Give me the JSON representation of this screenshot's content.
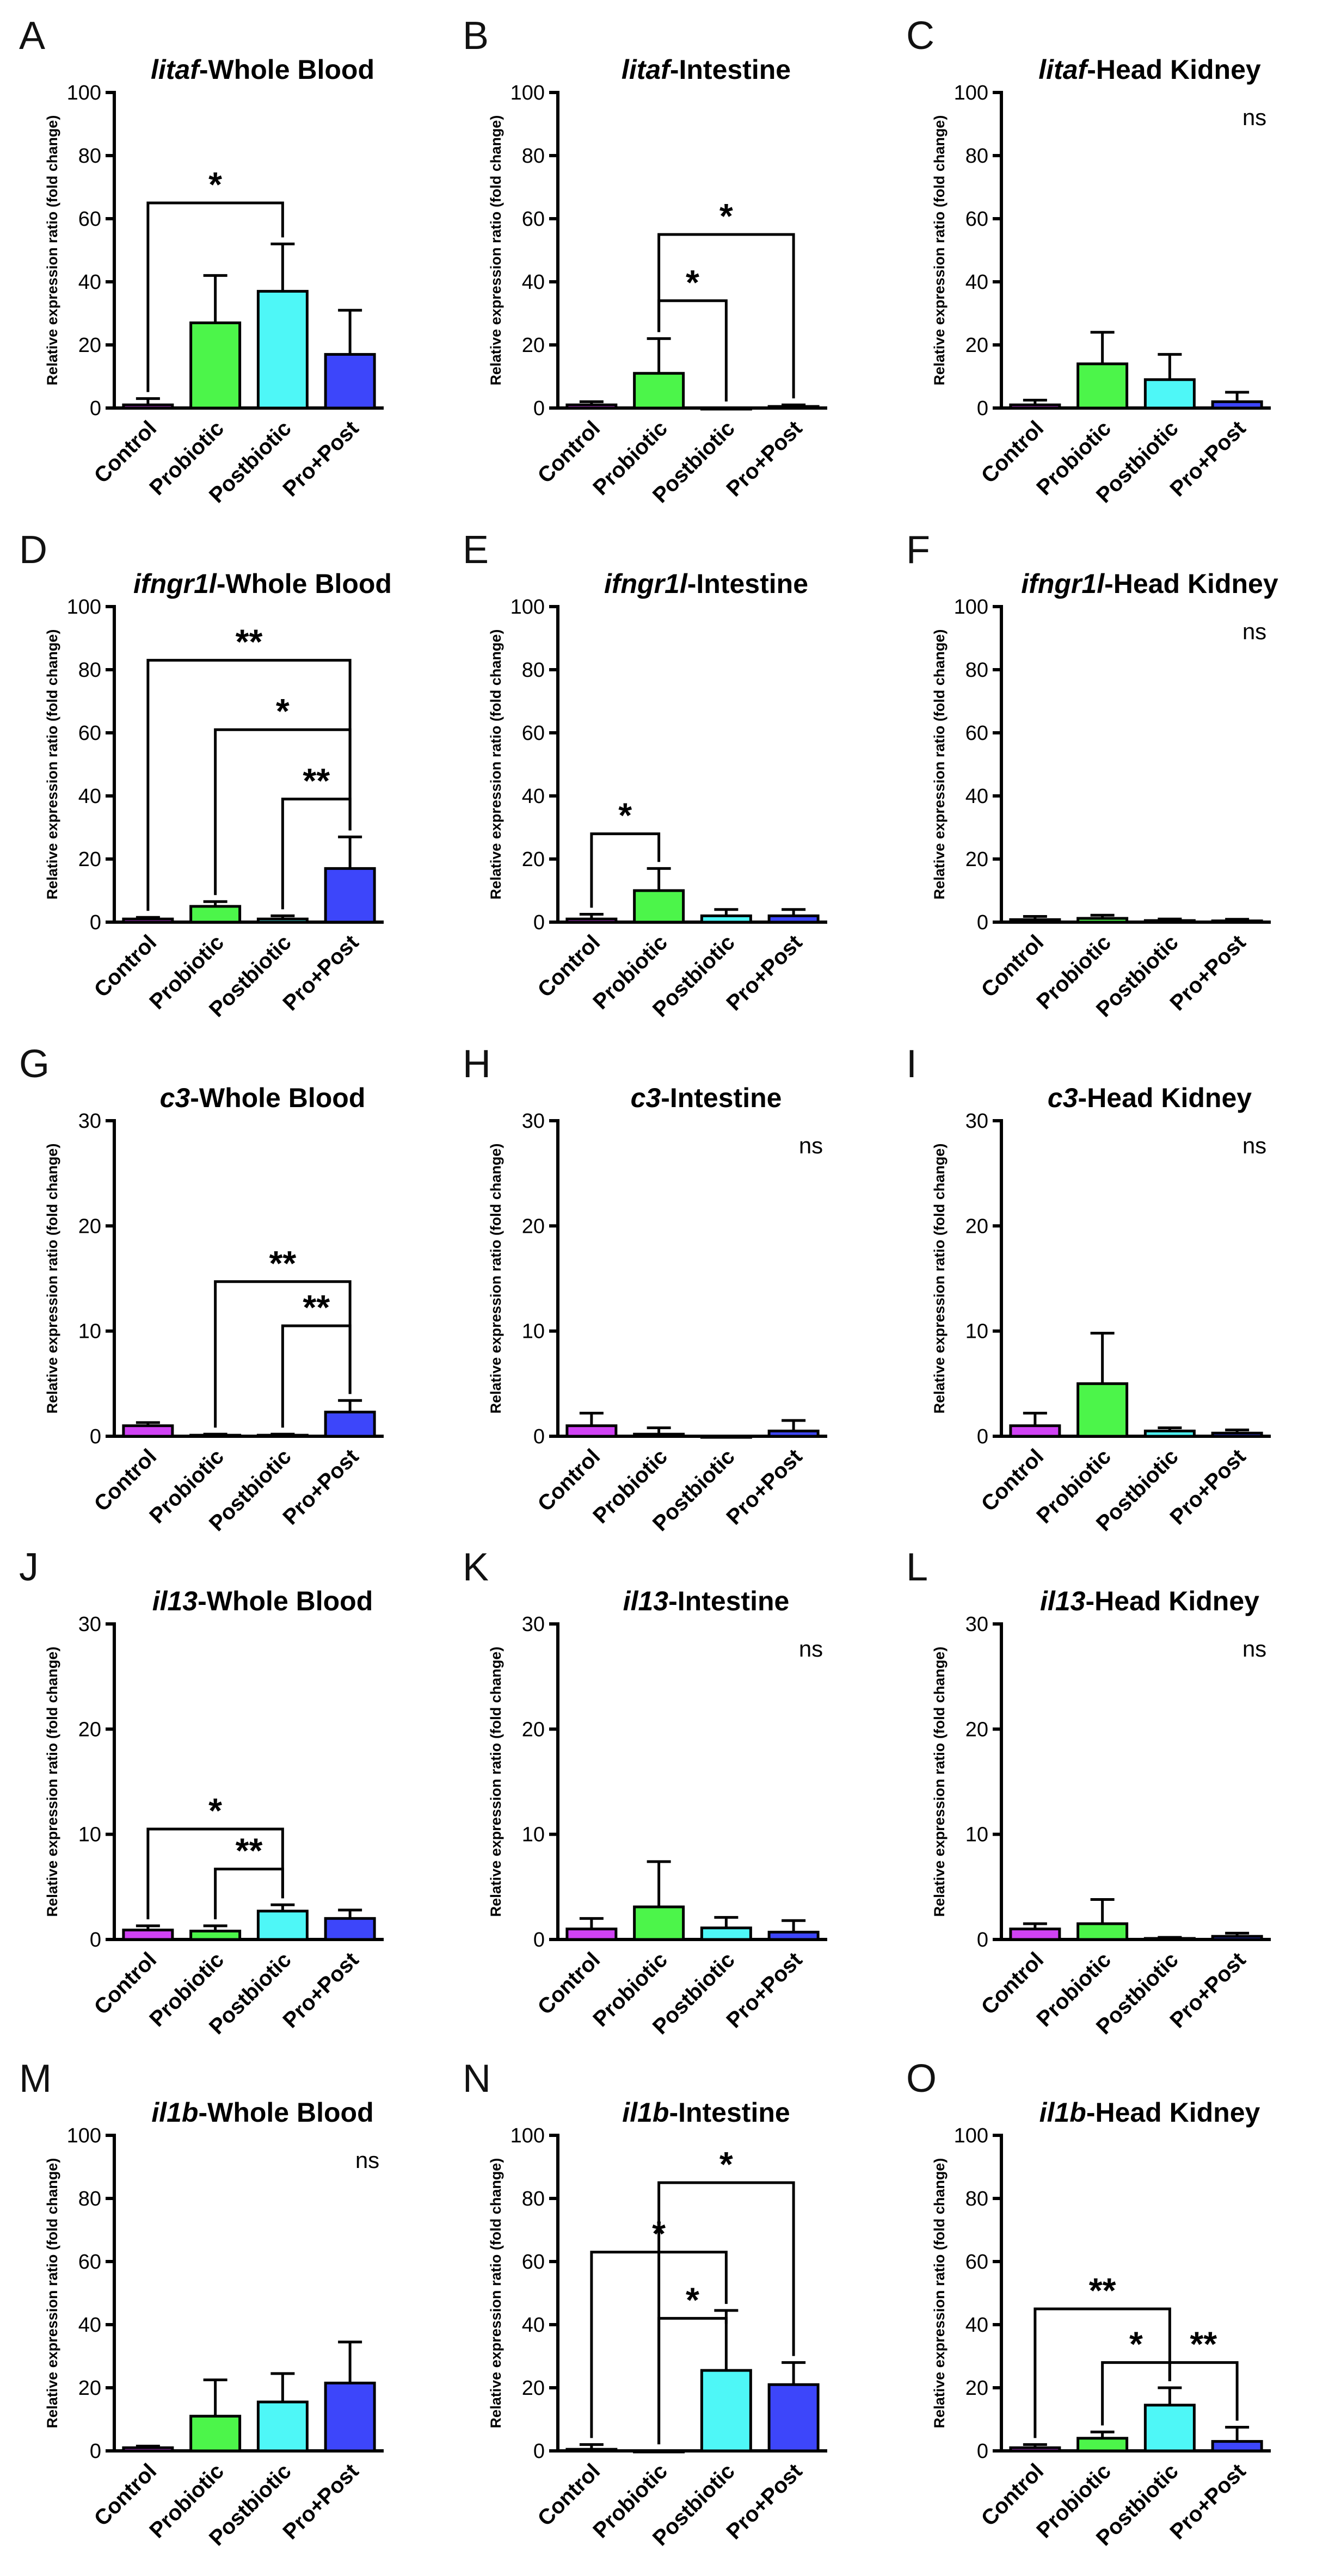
{
  "categories": [
    "Control",
    "Probiotic",
    "Postbiotic",
    "Pro+Post"
  ],
  "colors": {
    "Control": "#d042f4",
    "Probiotic": "#4cf54a",
    "Postbiotic": "#4ef7f7",
    "Pro+Post": "#3d46fa",
    "axis": "#000000"
  },
  "ylabel": "Relative expression ratio (fold change)",
  "chart_data": [
    {
      "panel": "A",
      "type": "bar",
      "gene": "litaf",
      "tissue": "-Whole Blood",
      "ylim": [
        0,
        100
      ],
      "yticks": [
        0,
        20,
        40,
        60,
        80,
        100
      ],
      "values": [
        1,
        27,
        37,
        17
      ],
      "errors": [
        2,
        15,
        15,
        14
      ],
      "ns": "",
      "brackets": [
        {
          "from": 0,
          "to": 2,
          "level": 65,
          "label": "*"
        }
      ]
    },
    {
      "panel": "B",
      "type": "bar",
      "gene": "litaf",
      "tissue": "-Intestine",
      "ylim": [
        0,
        100
      ],
      "yticks": [
        0,
        20,
        40,
        60,
        80,
        100
      ],
      "values": [
        1,
        11,
        0,
        0.5
      ],
      "errors": [
        1,
        11,
        0,
        0.5
      ],
      "ns": "",
      "brackets": [
        {
          "from": 1,
          "to": 3,
          "level": 55,
          "label": "*"
        },
        {
          "from": 1,
          "to": 2,
          "level": 34,
          "label": "*"
        }
      ]
    },
    {
      "panel": "C",
      "type": "bar",
      "gene": "litaf",
      "tissue": "-Head Kidney",
      "ylim": [
        0,
        100
      ],
      "yticks": [
        0,
        20,
        40,
        60,
        80,
        100
      ],
      "values": [
        1,
        14,
        9,
        2
      ],
      "errors": [
        1.5,
        10,
        8,
        3
      ],
      "ns": "ns",
      "brackets": []
    },
    {
      "panel": "D",
      "type": "bar",
      "gene": "ifngr1l",
      "tissue": "-Whole Blood",
      "ylim": [
        0,
        100
      ],
      "yticks": [
        0,
        20,
        40,
        60,
        80,
        100
      ],
      "values": [
        1,
        5,
        1,
        17
      ],
      "errors": [
        0.5,
        1.5,
        1,
        10
      ],
      "ns": "",
      "brackets": [
        {
          "from": 0,
          "to": 3,
          "level": 83,
          "label": "**"
        },
        {
          "from": 1,
          "to": 3,
          "level": 61,
          "label": "*"
        },
        {
          "from": 2,
          "to": 3,
          "level": 39,
          "label": "**"
        }
      ]
    },
    {
      "panel": "E",
      "type": "bar",
      "gene": "ifngr1l",
      "tissue": "-Intestine",
      "ylim": [
        0,
        100
      ],
      "yticks": [
        0,
        20,
        40,
        60,
        80,
        100
      ],
      "values": [
        1,
        10,
        2,
        2
      ],
      "errors": [
        1.5,
        7,
        2,
        2
      ],
      "ns": "",
      "brackets": [
        {
          "from": 0,
          "to": 1,
          "level": 28,
          "label": "*"
        }
      ]
    },
    {
      "panel": "F",
      "type": "bar",
      "gene": "ifngr1l",
      "tissue": "-Head Kidney",
      "ylim": [
        0,
        100
      ],
      "yticks": [
        0,
        20,
        40,
        60,
        80,
        100
      ],
      "values": [
        0.8,
        1.2,
        0.5,
        0.4
      ],
      "errors": [
        1,
        1,
        0.5,
        0.5
      ],
      "ns": "ns",
      "brackets": []
    },
    {
      "panel": "G",
      "type": "bar",
      "gene": "c3",
      "tissue": "-Whole Blood",
      "ylim": [
        0,
        30
      ],
      "yticks": [
        0,
        10,
        20,
        30
      ],
      "values": [
        1,
        0.1,
        0.1,
        2.3
      ],
      "errors": [
        0.3,
        0.1,
        0.1,
        1.1
      ],
      "ns": "",
      "brackets": [
        {
          "from": 1,
          "to": 3,
          "level": 14.7,
          "label": "**"
        },
        {
          "from": 2,
          "to": 3,
          "level": 10.5,
          "label": "**"
        }
      ]
    },
    {
      "panel": "H",
      "type": "bar",
      "gene": "c3",
      "tissue": "-Intestine",
      "ylim": [
        0,
        30
      ],
      "yticks": [
        0,
        10,
        20,
        30
      ],
      "values": [
        1,
        0.2,
        0,
        0.5
      ],
      "errors": [
        1.2,
        0.6,
        0,
        1
      ],
      "ns": "ns",
      "brackets": []
    },
    {
      "panel": "I",
      "type": "bar",
      "gene": "c3",
      "tissue": "-Head Kidney",
      "ylim": [
        0,
        30
      ],
      "yticks": [
        0,
        10,
        20,
        30
      ],
      "values": [
        1,
        5,
        0.5,
        0.3
      ],
      "errors": [
        1.2,
        4.8,
        0.3,
        0.3
      ],
      "ns": "ns",
      "brackets": []
    },
    {
      "panel": "J",
      "type": "bar",
      "gene": "il13",
      "tissue": "-Whole Blood",
      "ylim": [
        0,
        30
      ],
      "yticks": [
        0,
        10,
        20,
        30
      ],
      "values": [
        0.9,
        0.8,
        2.7,
        2
      ],
      "errors": [
        0.4,
        0.5,
        0.6,
        0.8
      ],
      "ns": "",
      "brackets": [
        {
          "from": 0,
          "to": 2,
          "level": 10.5,
          "label": "*"
        },
        {
          "from": 1,
          "to": 2,
          "level": 6.7,
          "label": "**"
        }
      ]
    },
    {
      "panel": "K",
      "type": "bar",
      "gene": "il13",
      "tissue": "-Intestine",
      "ylim": [
        0,
        30
      ],
      "yticks": [
        0,
        10,
        20,
        30
      ],
      "values": [
        1,
        3.1,
        1.1,
        0.7
      ],
      "errors": [
        1,
        4.3,
        1,
        1.1
      ],
      "ns": "ns",
      "brackets": []
    },
    {
      "panel": "L",
      "type": "bar",
      "gene": "il13",
      "tissue": "-Head Kidney",
      "ylim": [
        0,
        30
      ],
      "yticks": [
        0,
        10,
        20,
        30
      ],
      "values": [
        1,
        1.5,
        0.1,
        0.3
      ],
      "errors": [
        0.5,
        2.3,
        0.1,
        0.3
      ],
      "ns": "ns",
      "brackets": []
    },
    {
      "panel": "M",
      "type": "bar",
      "gene": "il1b",
      "tissue": "-Whole Blood",
      "ylim": [
        0,
        100
      ],
      "yticks": [
        0,
        20,
        40,
        60,
        80,
        100
      ],
      "values": [
        1,
        11,
        15.5,
        21.5
      ],
      "errors": [
        0.5,
        11.5,
        9,
        13
      ],
      "ns": "ns",
      "brackets": []
    },
    {
      "panel": "N",
      "type": "bar",
      "gene": "il1b",
      "tissue": "-Intestine",
      "ylim": [
        0,
        100
      ],
      "yticks": [
        0,
        20,
        40,
        60,
        80,
        100
      ],
      "values": [
        0.5,
        0,
        25.5,
        21
      ],
      "errors": [
        1.5,
        0,
        19,
        7
      ],
      "ns": "",
      "brackets": [
        {
          "from": 1,
          "to": 3,
          "level": 85,
          "label": "*"
        },
        {
          "from": 0,
          "to": 2,
          "level": 63,
          "label": "*"
        },
        {
          "from": 1,
          "to": 2,
          "level": 42,
          "label": "*"
        }
      ]
    },
    {
      "panel": "O",
      "type": "bar",
      "gene": "il1b",
      "tissue": "-Head Kidney",
      "ylim": [
        0,
        100
      ],
      "yticks": [
        0,
        20,
        40,
        60,
        80,
        100
      ],
      "values": [
        1,
        4,
        14.5,
        3
      ],
      "errors": [
        1,
        2,
        5.5,
        4.5
      ],
      "ns": "",
      "brackets": [
        {
          "from": 0,
          "to": 2,
          "level": 45,
          "label": "**"
        },
        {
          "from": 1,
          "to": 2,
          "level": 28,
          "label": "*"
        },
        {
          "from": 2,
          "to": 3,
          "level": 28,
          "label": "**"
        }
      ]
    }
  ]
}
